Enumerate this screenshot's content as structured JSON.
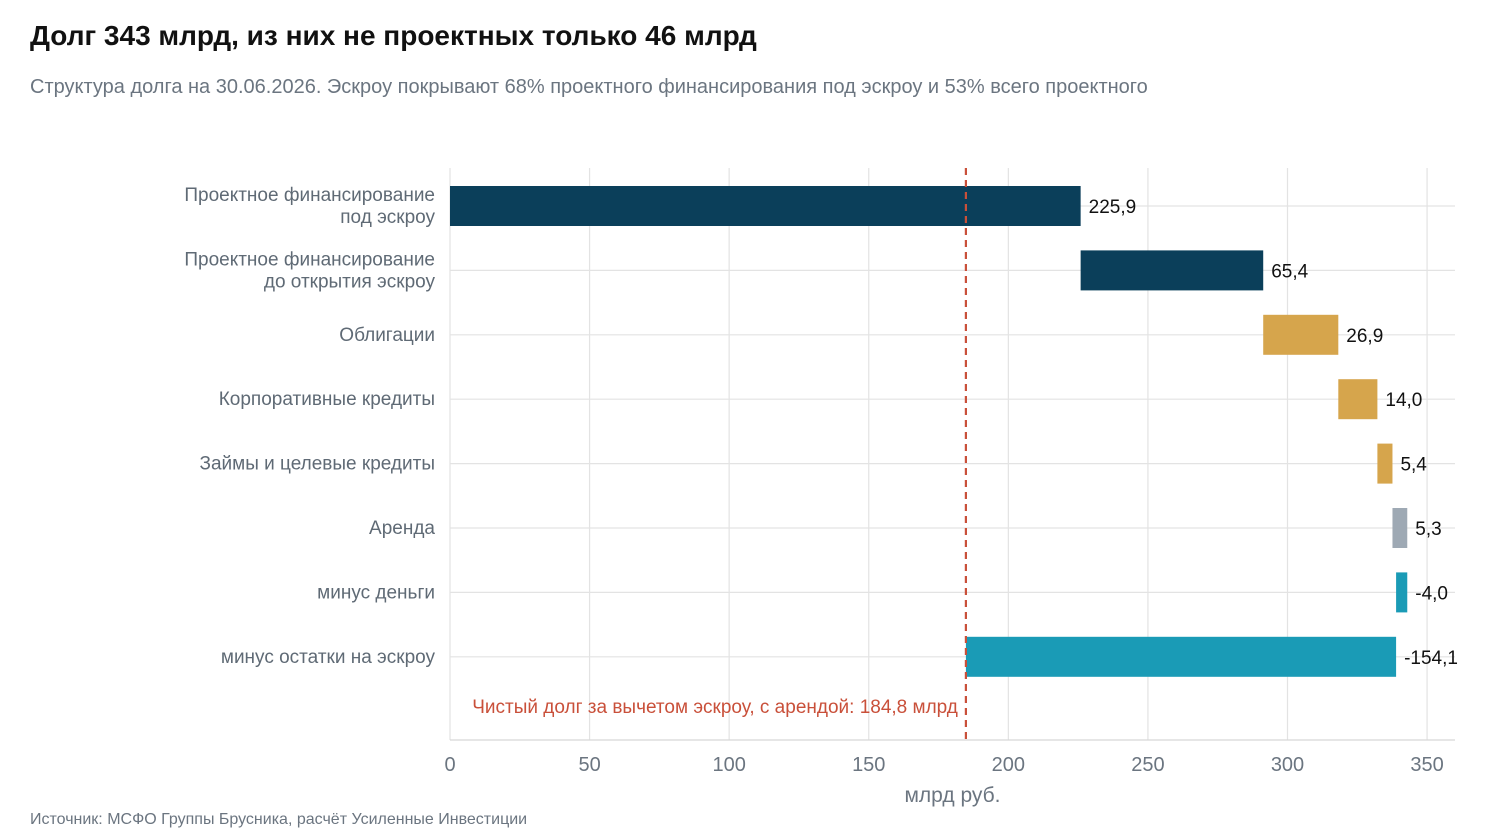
{
  "title": "Долг 343 млрд, из них не проектных только 46 млрд",
  "subtitle": "Структура долга на 30.06.2026. Эскроу покрывают 68% проектного финансирования под эскроу и 53% всего проектного",
  "source": "Источник: МСФО Группы Брусника, расчёт Усиленные Инвестиции",
  "chart_data": {
    "type": "bar",
    "subtype": "waterfall-horizontal",
    "categories": [
      [
        "Проектное финансирование",
        "под эскроу"
      ],
      [
        "Проектное финансирование",
        "до открытия эскроу"
      ],
      [
        "Облигации"
      ],
      [
        "Корпоративные кредиты"
      ],
      [
        "Займы и целевые кредиты"
      ],
      [
        "Аренда"
      ],
      [
        "минус деньги"
      ],
      [
        "минус остатки на эскроу"
      ]
    ],
    "values": [
      225.9,
      65.4,
      26.9,
      14.0,
      5.4,
      5.3,
      -4.0,
      -154.1
    ],
    "value_labels": [
      "225,9",
      "65,4",
      "26,9",
      "14,0",
      "5,4",
      "5,3",
      "-4,0",
      "-154,1"
    ],
    "colors": [
      "#0b3f5a",
      "#0b3f5a",
      "#d6a54c",
      "#d6a54c",
      "#d6a54c",
      "#9ea9b4",
      "#1a9bb6",
      "#1a9bb6"
    ],
    "xlabel": "млрд руб.",
    "xlim": [
      0,
      360
    ],
    "xticks": [
      0,
      50,
      100,
      150,
      200,
      250,
      300,
      350
    ],
    "grid": true,
    "reference_line": {
      "value": 184.8,
      "label": "Чистый долг за вычетом эскроу, с арендой: 184,8 млрд",
      "color": "#c9503a",
      "style": "dashed"
    }
  }
}
